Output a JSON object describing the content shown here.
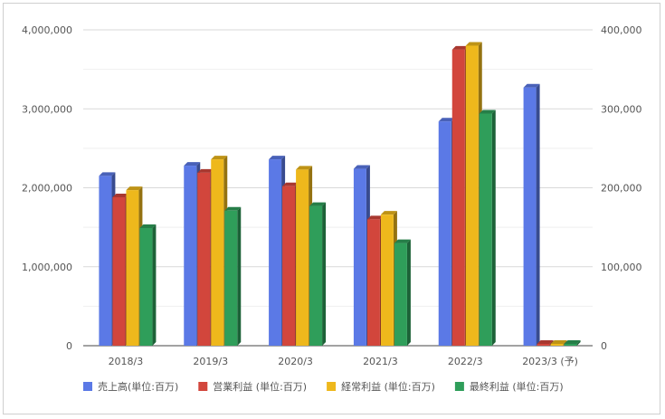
{
  "chart_data": {
    "type": "bar",
    "style": "3d-column",
    "title": "",
    "categories": [
      "2018/3",
      "2019/3",
      "2020/3",
      "2021/3",
      "2022/3",
      "2023/3 (予)"
    ],
    "y_left": {
      "ylim": [
        0,
        4000000
      ],
      "ticks": [
        "0",
        "1,000,000",
        "2,000,000",
        "3,000,000",
        "4,000,000"
      ]
    },
    "y_right": {
      "ylim": [
        0,
        400000
      ],
      "ticks": [
        "0",
        "100,000",
        "200,000",
        "300,000",
        "400,000"
      ]
    },
    "grid": true,
    "legend_position": "bottom",
    "series": [
      {
        "name": "売上高(単位:百万)",
        "axis": "left",
        "color": "#5b79e6",
        "values": [
          2150000,
          2280000,
          2360000,
          2240000,
          2840000,
          3270000
        ]
      },
      {
        "name": "営業利益 (単位:百万)",
        "axis": "right",
        "color": "#d2463c",
        "values": [
          188000,
          219000,
          202000,
          160000,
          375000,
          0
        ]
      },
      {
        "name": "経常利益 (単位:百万)",
        "axis": "right",
        "color": "#eeb81c",
        "values": [
          197000,
          236000,
          223000,
          166000,
          380000,
          0
        ]
      },
      {
        "name": "最終利益 (単位:百万)",
        "axis": "right",
        "color": "#2f9e5a",
        "values": [
          149000,
          171000,
          177000,
          130000,
          294000,
          0
        ]
      }
    ]
  }
}
